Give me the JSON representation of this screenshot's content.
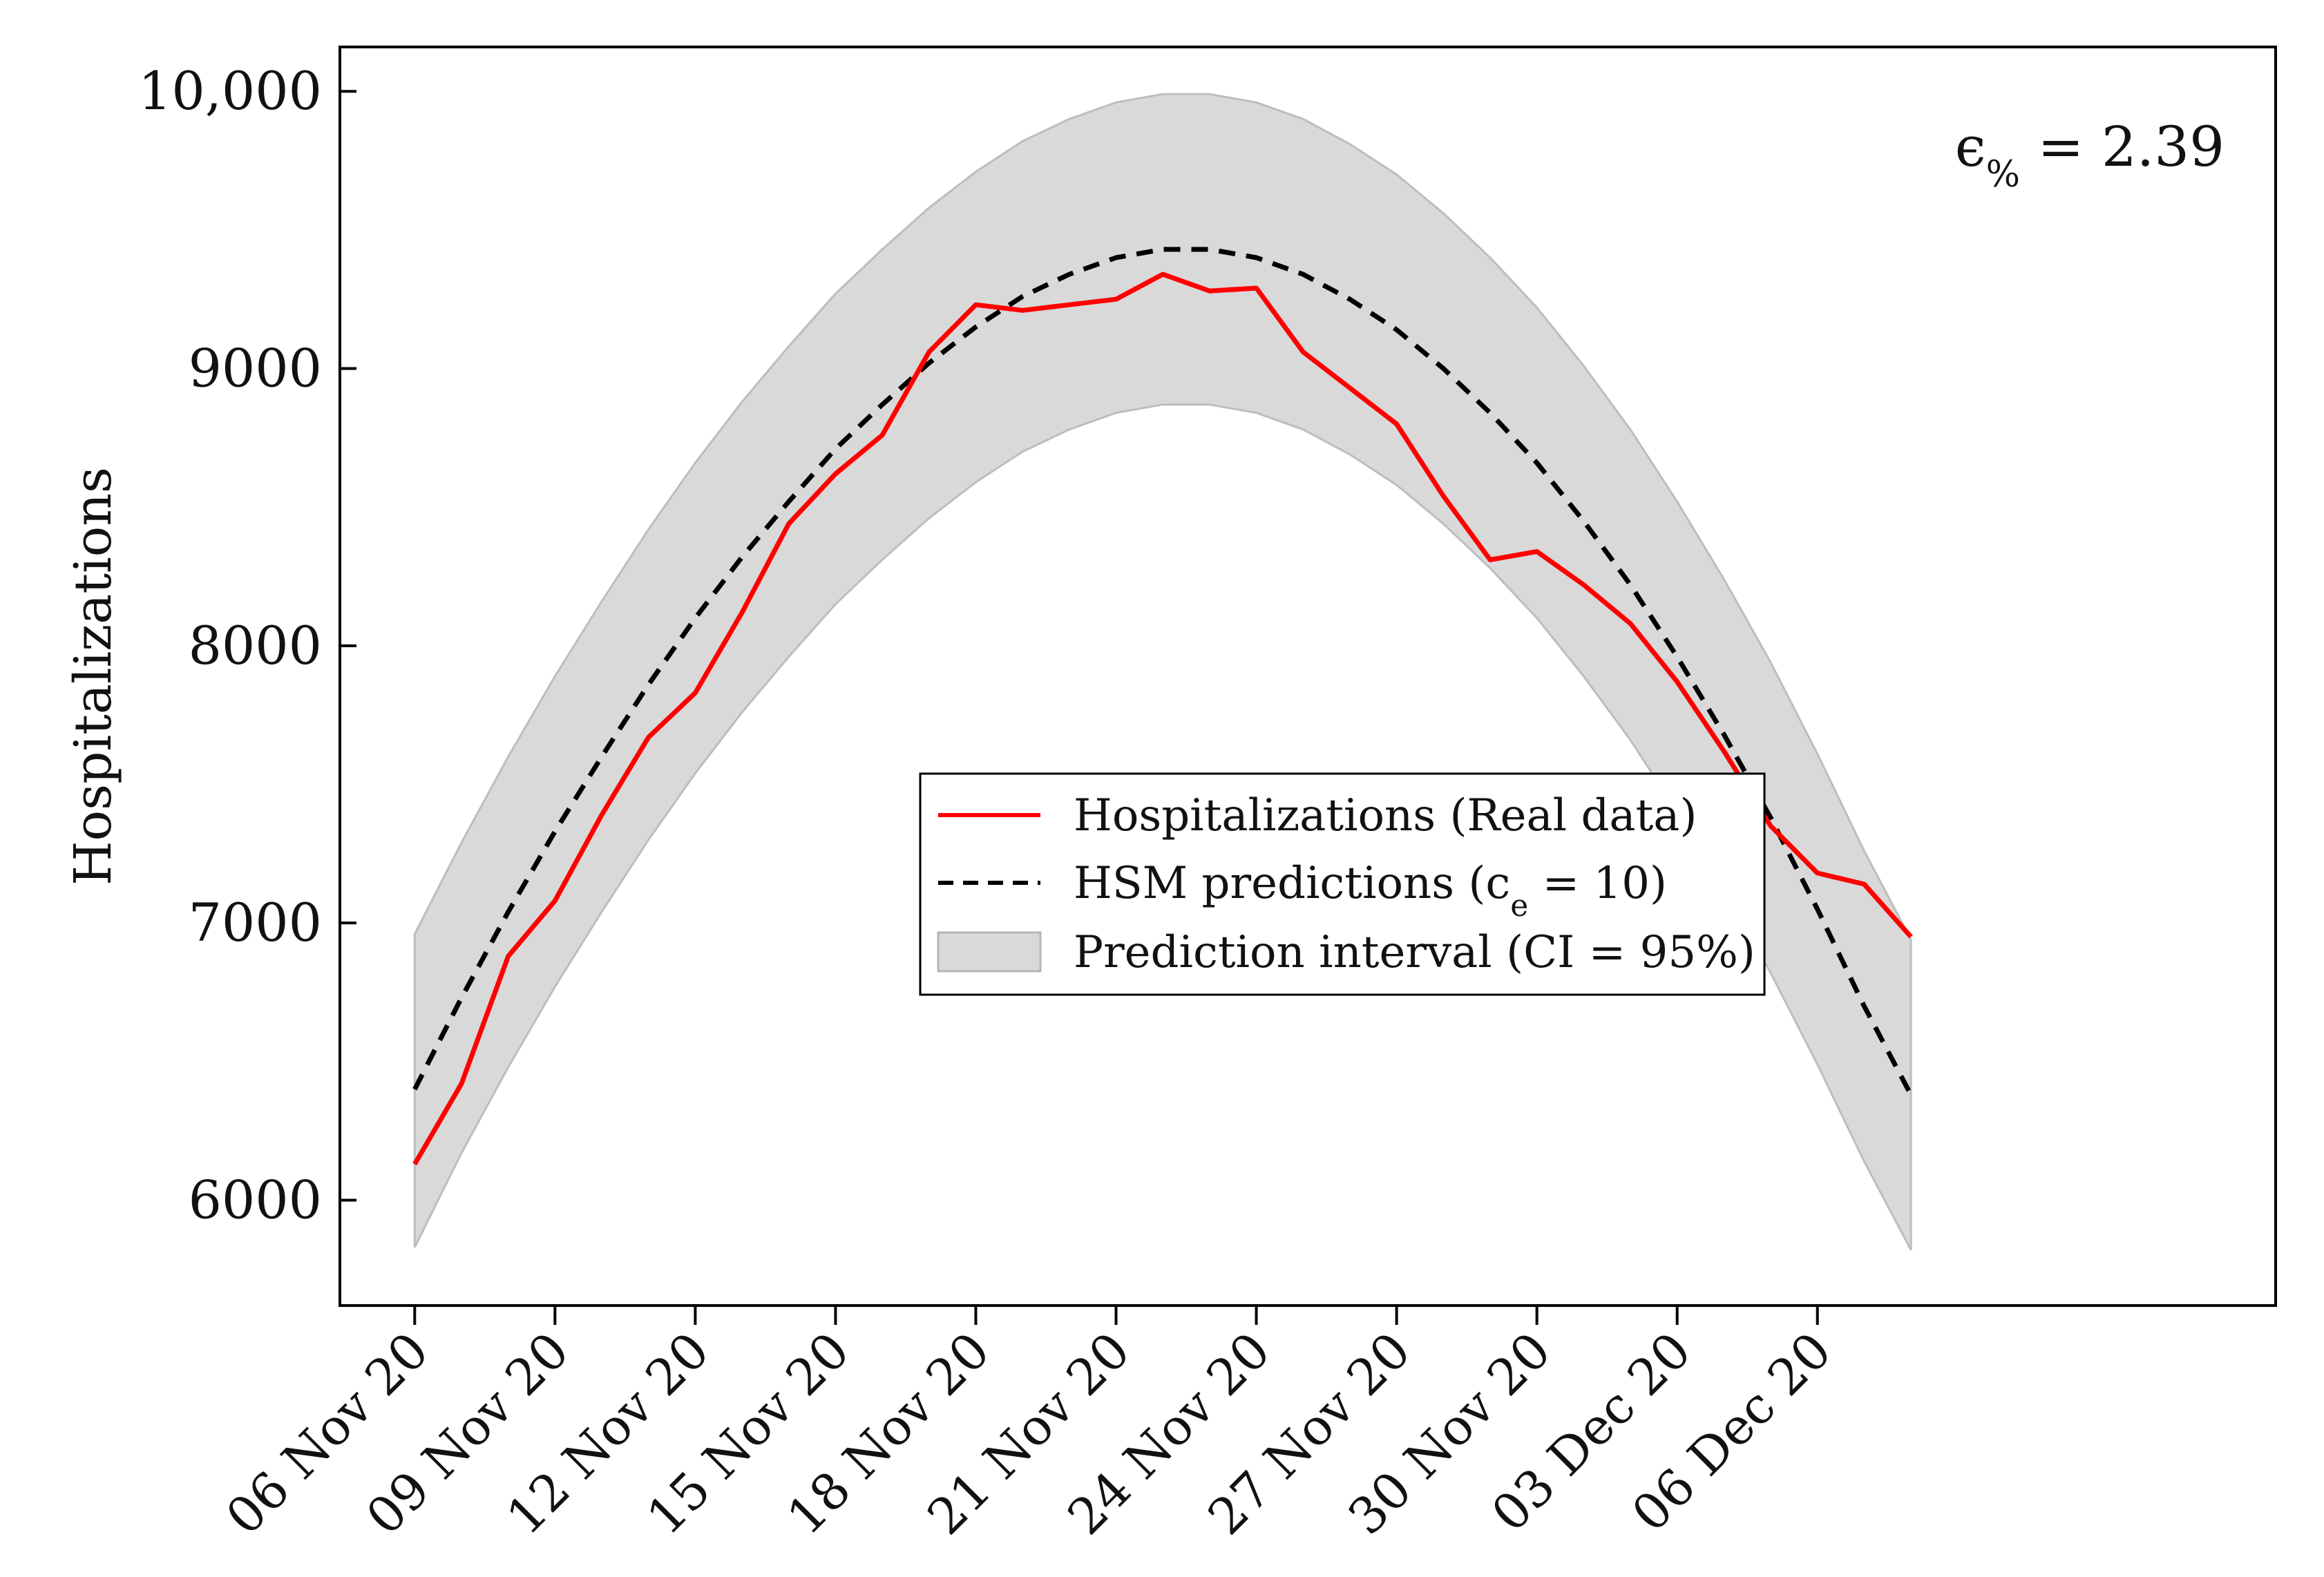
{
  "chart_data": {
    "type": "line",
    "title": "",
    "xlabel": "",
    "ylabel": "Hospitalizations",
    "ylim": [
      5620,
      10160
    ],
    "xlim": [
      -1.6,
      39.8
    ],
    "yticks": [
      6000,
      7000,
      8000,
      9000,
      10000
    ],
    "ytick_labels": [
      "6000",
      "7000",
      "8000",
      "9000",
      "10,000"
    ],
    "xticks": [
      0,
      3,
      6,
      9,
      12,
      15,
      18,
      21,
      24,
      27,
      30
    ],
    "xtick_labels": [
      "06 Nov 20",
      "09 Nov 20",
      "12 Nov 20",
      "15 Nov 20",
      "18 Nov 20",
      "21 Nov 20",
      "24 Nov 20",
      "27 Nov 20",
      "30 Nov 20",
      "03 Dec 20",
      "06 Dec 20"
    ],
    "x": [
      0,
      1,
      2,
      3,
      4,
      5,
      6,
      7,
      8,
      9,
      10,
      11,
      12,
      13,
      14,
      15,
      16,
      17,
      18,
      19,
      20,
      21,
      22,
      23,
      24,
      25,
      26,
      27,
      28,
      29,
      30,
      31,
      32
    ],
    "series": [
      {
        "name": "Hospitalizations (Real data)",
        "style": "solid",
        "color": "#ff0000",
        "values": [
          6130,
          6420,
          6880,
          7080,
          7390,
          7670,
          7830,
          8120,
          8440,
          8620,
          8760,
          9060,
          9230,
          9210,
          9230,
          9250,
          9340,
          9280,
          9290,
          9060,
          8930,
          8800,
          8540,
          8310,
          8340,
          8220,
          8080,
          7870,
          7620,
          7350,
          7180,
          7140,
          6950
        ]
      },
      {
        "name": "HSM predictions",
        "style": "dashed",
        "color": "#000000",
        "values": [
          6400,
          6730,
          7040,
          7330,
          7600,
          7860,
          8100,
          8320,
          8520,
          8710,
          8870,
          9020,
          9150,
          9260,
          9340,
          9400,
          9430,
          9430,
          9400,
          9340,
          9250,
          9140,
          9000,
          8840,
          8660,
          8450,
          8220,
          7960,
          7680,
          7380,
          7050,
          6700,
          6380
        ]
      }
    ],
    "band": {
      "name": "Prediction interval (CI = 95%)",
      "color": "#d9d9d9",
      "lower": [
        5830,
        6170,
        6480,
        6770,
        7040,
        7300,
        7540,
        7760,
        7960,
        8150,
        8310,
        8460,
        8590,
        8700,
        8780,
        8840,
        8870,
        8870,
        8840,
        8780,
        8690,
        8580,
        8440,
        8280,
        8100,
        7890,
        7660,
        7400,
        7120,
        6820,
        6490,
        6140,
        5820
      ],
      "upper": [
        6960,
        7290,
        7600,
        7890,
        8160,
        8420,
        8660,
        8880,
        9080,
        9270,
        9430,
        9580,
        9710,
        9820,
        9900,
        9960,
        9990,
        9990,
        9960,
        9900,
        9810,
        9700,
        9560,
        9400,
        9220,
        9010,
        8780,
        8520,
        8240,
        7940,
        7610,
        7260,
        6940
      ]
    },
    "legend": {
      "placement": "center",
      "entries": [
        {
          "label": "Hospitalizations (Real data)",
          "kind": "line-solid",
          "color": "#ff0000"
        },
        {
          "label": "HSM predictions (c",
          "sub": "e",
          "suffix": " = 10)",
          "kind": "line-dashed",
          "color": "#000000"
        },
        {
          "label": "Prediction interval (CI = 95%)",
          "kind": "patch",
          "color": "#d9d9d9"
        }
      ]
    },
    "annotation": {
      "symbol": "ϵ",
      "sub": "%",
      "text": " = 2.39",
      "placement": "top-right"
    }
  }
}
